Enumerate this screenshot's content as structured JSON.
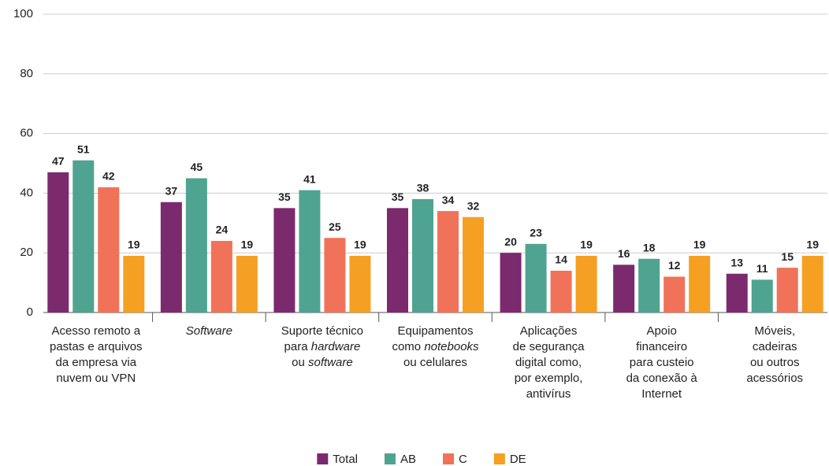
{
  "chart_data": {
    "type": "bar",
    "categories": [
      [
        "Acesso remoto a",
        "pastas e arquivos",
        "da empresa via",
        "nuvem ou VPN"
      ],
      [
        [
          {
            "text": "Software",
            "italic": true
          }
        ]
      ],
      [
        "Suporte técnico",
        [
          "para ",
          {
            "text": "hardware",
            "italic": true
          }
        ],
        [
          "ou ",
          {
            "text": "software",
            "italic": true
          }
        ]
      ],
      [
        "Equipamentos",
        [
          "como ",
          {
            "text": "notebooks",
            "italic": true
          }
        ],
        "ou celulares"
      ],
      [
        "Aplicações",
        "de segurança",
        "digital como,",
        "por exemplo,",
        "antivírus"
      ],
      [
        "Apoio",
        "financeiro",
        "para custeio",
        "da conexão à",
        "Internet"
      ],
      [
        "Móveis,",
        "cadeiras",
        "ou outros",
        "acessórios"
      ]
    ],
    "series": [
      {
        "name": "Total",
        "color": "#7b2a6e",
        "values": [
          47,
          37,
          35,
          35,
          20,
          16,
          13
        ]
      },
      {
        "name": "AB",
        "color": "#4fa391",
        "values": [
          51,
          45,
          41,
          38,
          23,
          18,
          11
        ]
      },
      {
        "name": "C",
        "color": "#f07259",
        "values": [
          42,
          24,
          25,
          34,
          14,
          12,
          15
        ]
      },
      {
        "name": "DE",
        "color": "#f5a023",
        "values": [
          19,
          19,
          19,
          32,
          19,
          19,
          19
        ]
      }
    ],
    "ylim": [
      0,
      100
    ],
    "yticks": [
      0,
      20,
      40,
      60,
      80,
      100
    ],
    "grid": true,
    "legend": "bottom"
  }
}
